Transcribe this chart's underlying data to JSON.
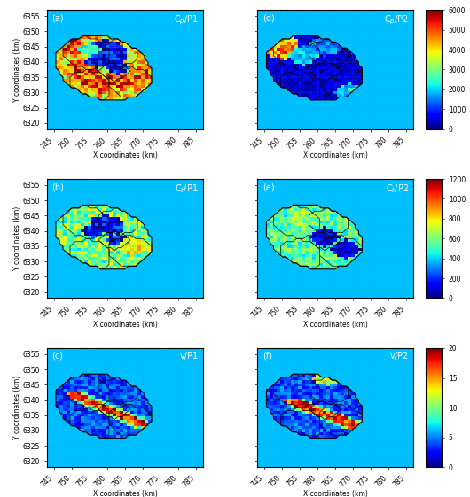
{
  "figsize": [
    5.3,
    5.61
  ],
  "dpi": 100,
  "bg_color": "#00bfff",
  "xlim": [
    743,
    787
  ],
  "ylim": [
    6318,
    6357
  ],
  "xticks": [
    745,
    750,
    755,
    760,
    765,
    770,
    775,
    780,
    785
  ],
  "yticks": [
    6320,
    6325,
    6330,
    6335,
    6340,
    6345,
    6350,
    6355
  ],
  "xlabel": "X coordinates (km)",
  "ylabel": "Y coordinates (km)",
  "colorbar_ranges": [
    [
      0,
      6000
    ],
    [
      0,
      1200
    ],
    [
      0,
      20
    ]
  ],
  "colorbar_ticks": [
    [
      0,
      1000,
      2000,
      3000,
      4000,
      5000,
      6000
    ],
    [
      0,
      200,
      400,
      600,
      800,
      1000,
      1200
    ],
    [
      0,
      5,
      10,
      15,
      20
    ]
  ],
  "panel_labels": [
    "(a)",
    "(b)",
    "(c)",
    "(d)",
    "(e)",
    "(f)"
  ],
  "panel_titles": [
    "C$_p$/P1",
    "C$_t$/P1",
    "v/P1",
    "C$_p$/P2",
    "C$_t$/P2",
    "v/P2"
  ],
  "cmap": "jet"
}
